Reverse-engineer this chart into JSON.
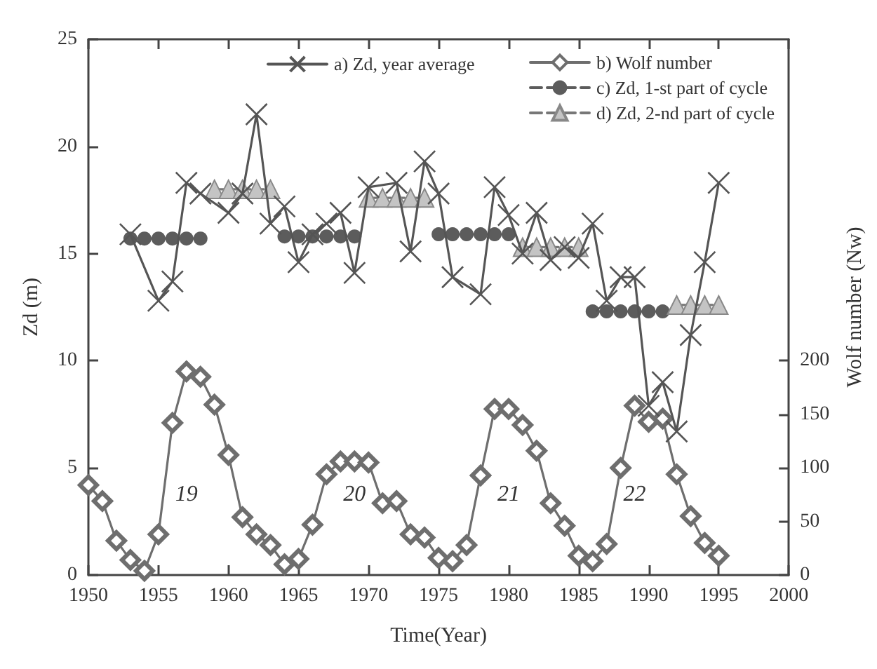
{
  "chart_data": {
    "type": "line",
    "xlabel": "Time(Year)",
    "ylabel": "Zd (m)",
    "y2label": "Wolf number (Nw)",
    "xlim": [
      1950,
      2000
    ],
    "xticks": [
      1950,
      1955,
      1960,
      1965,
      1970,
      1975,
      1980,
      1985,
      1990,
      1995,
      2000
    ],
    "ylim": [
      0,
      25
    ],
    "yticks": [
      0,
      5,
      10,
      15,
      20,
      25
    ],
    "y2lim": [
      0,
      500
    ],
    "y2ticks": [
      0,
      50,
      100,
      150,
      200
    ],
    "grid": false,
    "legend": "top right",
    "series": [
      {
        "name": "a) Zd, year average",
        "color": "#555555",
        "marker": "cross",
        "line_style": "solid",
        "x": [
          1953,
          1955,
          1956,
          1957,
          1958,
          1960,
          1961,
          1962,
          1963,
          1964,
          1965,
          1966,
          1967,
          1968,
          1969,
          1970,
          1972,
          1973,
          1974,
          1975,
          1976,
          1978,
          1979,
          1980,
          1981,
          1982,
          1983,
          1984,
          1985,
          1986,
          1987,
          1988,
          1989,
          1990,
          1991,
          1992,
          1993,
          1994,
          1995
        ],
        "values": [
          15.9,
          12.8,
          13.7,
          18.3,
          17.8,
          16.9,
          17.8,
          21.5,
          16.4,
          17.2,
          14.6,
          15.9,
          16.4,
          16.9,
          14.1,
          18.1,
          18.3,
          15.1,
          19.3,
          17.8,
          13.9,
          13.1,
          18.1,
          16.8,
          15.0,
          16.9,
          14.7,
          15.3,
          14.8,
          16.4,
          12.8,
          13.9,
          13.9,
          7.9,
          9.0,
          6.7,
          11.2,
          14.6,
          18.3
        ]
      },
      {
        "name": "b) Wolf number",
        "color": "#6e6e6e",
        "marker": "diamond",
        "line_style": "solid",
        "axis": "y2",
        "x": [
          1950,
          1951,
          1952,
          1953,
          1954,
          1955,
          1956,
          1957,
          1958,
          1959,
          1960,
          1961,
          1962,
          1963,
          1964,
          1965,
          1966,
          1967,
          1968,
          1969,
          1970,
          1971,
          1972,
          1973,
          1974,
          1975,
          1976,
          1977,
          1978,
          1979,
          1980,
          1981,
          1982,
          1983,
          1984,
          1985,
          1986,
          1987,
          1988,
          1989,
          1990,
          1991,
          1992,
          1993,
          1994,
          1995
        ],
        "values": [
          84,
          69,
          32,
          14,
          4,
          38,
          142,
          190,
          185,
          159,
          112,
          54,
          38,
          28,
          10,
          15,
          47,
          94,
          106,
          106,
          105,
          67,
          69,
          38,
          35,
          16,
          13,
          28,
          93,
          155,
          155,
          140,
          116,
          67,
          46,
          18,
          13,
          29,
          100,
          158,
          143,
          146,
          94,
          55,
          30,
          18
        ]
      },
      {
        "name": "c) Zd, 1-st part of cycle",
        "color": "#5c5c5c",
        "marker": "circle",
        "line_style": "dashed",
        "x": [
          1953,
          1954,
          1955,
          1956,
          1957,
          1958,
          1961,
          1964,
          1965,
          1966,
          1967,
          1968,
          1969,
          1972,
          1975,
          1976,
          1977,
          1978,
          1979,
          1980,
          1983,
          1986,
          1987,
          1988,
          1989,
          1990,
          1991
        ],
        "values": [
          15.7,
          15.7,
          15.7,
          15.7,
          15.7,
          15.7,
          null,
          15.8,
          15.8,
          15.8,
          15.8,
          15.8,
          15.8,
          null,
          15.9,
          15.9,
          15.9,
          15.9,
          15.9,
          15.9,
          null,
          12.3,
          12.3,
          12.3,
          12.3,
          12.3,
          12.3
        ]
      },
      {
        "name": "d) Zd, 2-nd part of cycle",
        "color": "#c4c4c4",
        "marker": "triangle",
        "line_style": "dashed",
        "x": [
          1959,
          1960,
          1961,
          1962,
          1963,
          1966,
          1970,
          1971,
          1972,
          1973,
          1974,
          1977,
          1981,
          1982,
          1983,
          1984,
          1985,
          1988,
          1992,
          1993,
          1994,
          1995
        ],
        "values": [
          18.0,
          18.0,
          18.0,
          18.0,
          18.0,
          null,
          17.6,
          17.6,
          17.6,
          17.6,
          17.6,
          null,
          15.3,
          15.3,
          15.3,
          15.3,
          15.3,
          null,
          12.6,
          12.6,
          12.6,
          12.6
        ]
      }
    ],
    "annotations": [
      "19",
      "20",
      "21",
      "22"
    ]
  }
}
